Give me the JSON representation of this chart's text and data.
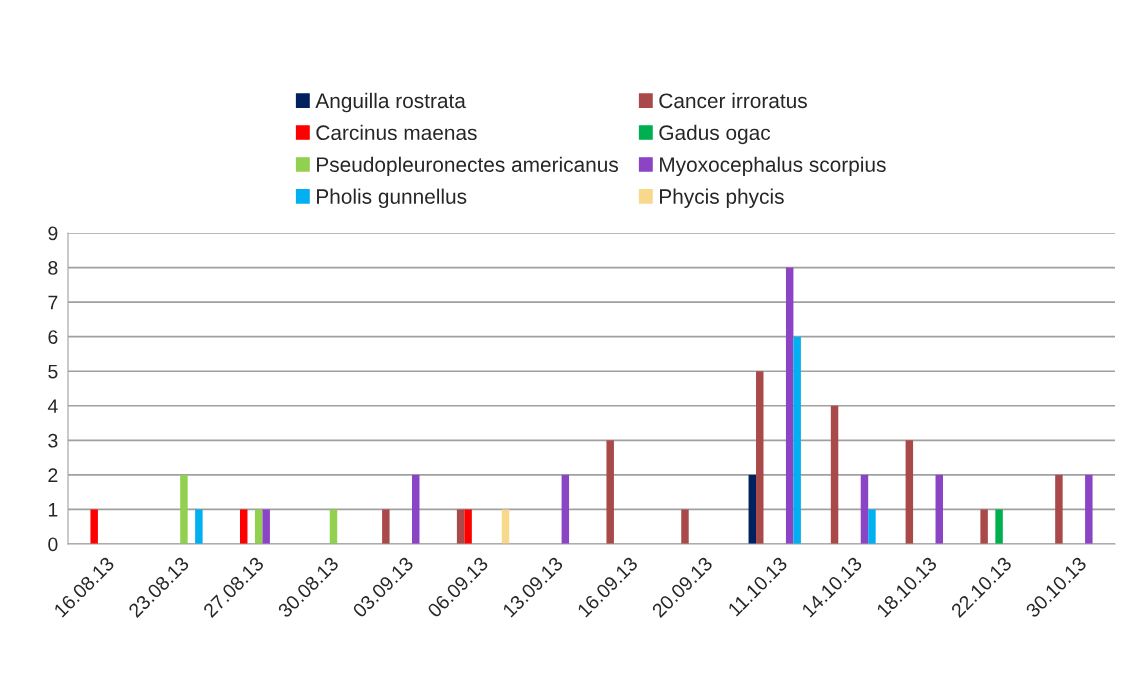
{
  "chart_data": {
    "type": "bar",
    "categories": [
      "16.08.13",
      "23.08.13",
      "27.08.13",
      "30.08.13",
      "03.09.13",
      "06.09.13",
      "13.09.13",
      "16.09.13",
      "20.09.13",
      "11.10.13",
      "14.10.13",
      "18.10.13",
      "22.10.13",
      "30.10.13"
    ],
    "series": [
      {
        "name": "Anguilla rostrata",
        "color": "#002060",
        "values": [
          0,
          0,
          0,
          0,
          0,
          0,
          0,
          0,
          0,
          2,
          0,
          0,
          0,
          0
        ]
      },
      {
        "name": "Cancer irroratus",
        "color": "#a9494a",
        "values": [
          0,
          0,
          0,
          0,
          1,
          1,
          0,
          3,
          1,
          5,
          4,
          3,
          1,
          2
        ]
      },
      {
        "name": "Carcinus maenas",
        "color": "#ff0000",
        "values": [
          1,
          0,
          1,
          0,
          0,
          1,
          0,
          0,
          0,
          0,
          0,
          0,
          0,
          0
        ]
      },
      {
        "name": "Gadus ogac",
        "color": "#00b050",
        "values": [
          0,
          0,
          0,
          0,
          0,
          0,
          0,
          0,
          0,
          0,
          0,
          0,
          1,
          0
        ]
      },
      {
        "name": "Pseudopleuronectes americanus",
        "color": "#92d050",
        "values": [
          0,
          2,
          1,
          1,
          0,
          0,
          0,
          0,
          0,
          0,
          0,
          0,
          0,
          0
        ]
      },
      {
        "name": "Myoxocephalus scorpius",
        "color": "#8b44c4",
        "values": [
          0,
          0,
          1,
          0,
          2,
          0,
          2,
          0,
          0,
          8,
          2,
          2,
          0,
          2
        ]
      },
      {
        "name": "Pholis gunnellus",
        "color": "#00b0f0",
        "values": [
          0,
          1,
          0,
          0,
          0,
          0,
          0,
          0,
          0,
          6,
          1,
          0,
          0,
          0
        ]
      },
      {
        "name": "Phycis phycis",
        "color": "#f8d98c",
        "values": [
          0,
          0,
          0,
          0,
          0,
          1,
          0,
          0,
          0,
          0,
          0,
          0,
          0,
          0
        ]
      }
    ],
    "ylim": [
      0,
      9
    ],
    "yticks": [
      0,
      1,
      2,
      3,
      4,
      5,
      6,
      7,
      8,
      9
    ],
    "grid": "y",
    "legend": "top"
  }
}
